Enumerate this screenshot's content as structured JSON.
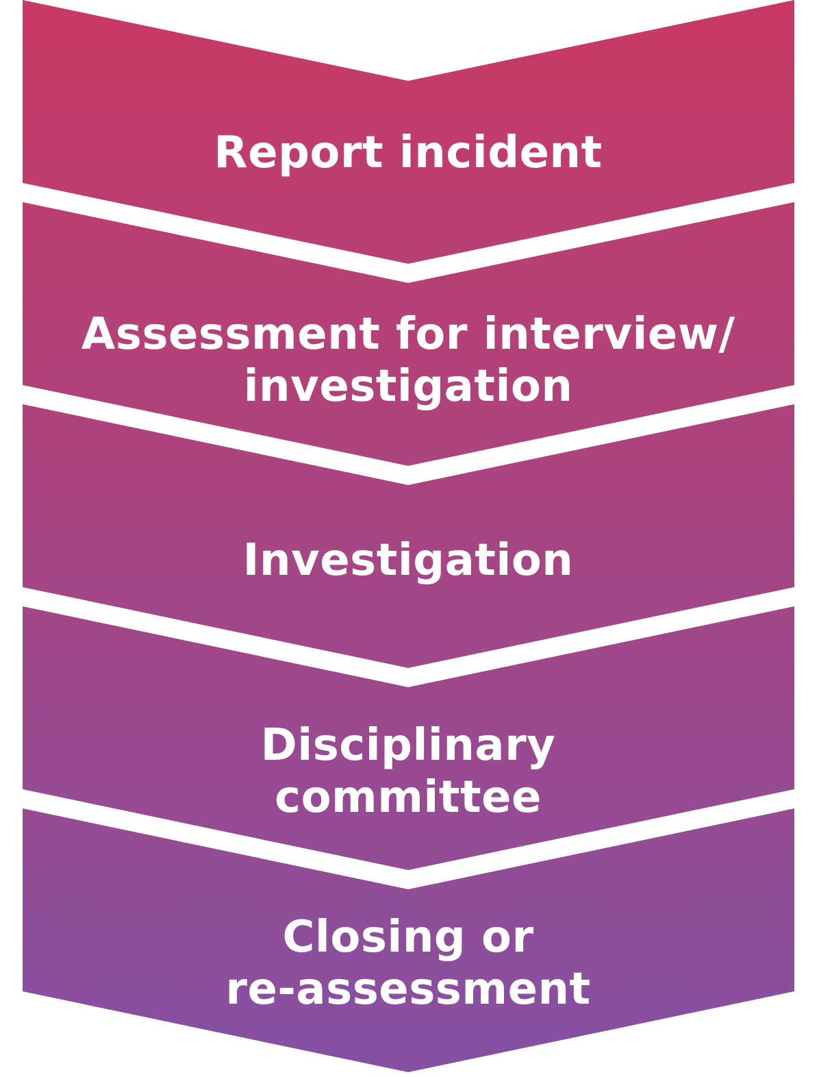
{
  "diagram": {
    "type": "chevron-process-flow",
    "orientation": "top-to-bottom",
    "gradient": {
      "top_color": "#c93a64",
      "bottom_color": "#8551a3"
    },
    "separator_color": "#ffffff",
    "steps": [
      {
        "label_lines": [
          "Report incident"
        ]
      },
      {
        "label_lines": [
          "Assessment for interview/",
          "investigation"
        ]
      },
      {
        "label_lines": [
          "Investigation"
        ]
      },
      {
        "label_lines": [
          "Disciplinary",
          "committee"
        ]
      },
      {
        "label_lines": [
          "Closing or",
          "re-assessment"
        ]
      }
    ]
  }
}
